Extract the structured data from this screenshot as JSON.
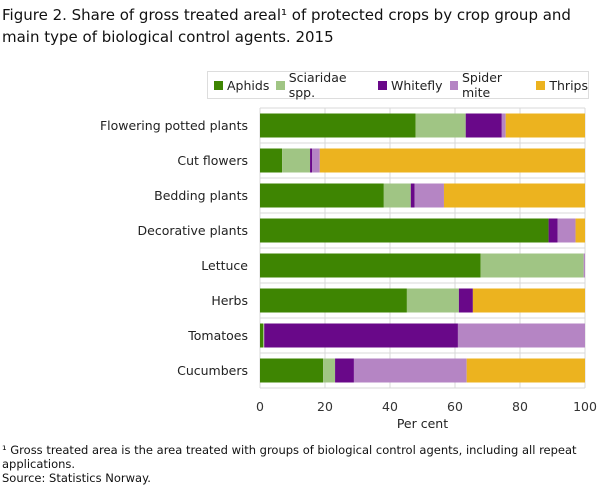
{
  "title": "Figure 2. Share of gross treated areal¹ of protected crops by crop group and main type of biological control agents. 2015",
  "footnote": "¹ Gross treated area is the area treated with groups of biological control agents, including all repeat applications.",
  "source": "Source: Statistics Norway.",
  "chart_data": {
    "type": "bar",
    "orientation": "horizontal",
    "stacked": true,
    "title": "Figure 2. Share of gross treated areal¹ of protected crops by crop group and main type of biological control agents. 2015",
    "xlabel": "Per cent",
    "ylabel": "",
    "xlim": [
      0,
      100
    ],
    "xticks": [
      "0",
      "20",
      "40",
      "60",
      "80",
      "100"
    ],
    "grid": true,
    "legend_position": "top-right",
    "categories": [
      "Flowering potted plants",
      "Cut flowers",
      "Bedding plants",
      "Decorative plants",
      "Lettuce",
      "Herbs",
      "Tomatoes",
      "Cucumbers"
    ],
    "series": [
      {
        "name": "Aphids",
        "color": "#3e8502",
        "values": [
          47.9,
          6.8,
          38.1,
          88.8,
          67.9,
          45.2,
          1.0,
          19.4
        ]
      },
      {
        "name": "Sciaridae spp.",
        "color": "#a0c584",
        "values": [
          15.4,
          8.6,
          8.3,
          0,
          31.7,
          16.0,
          0.3,
          3.7
        ]
      },
      {
        "name": "Whitefly",
        "color": "#690889",
        "values": [
          11.1,
          0.6,
          1.2,
          2.8,
          0,
          4.3,
          59.6,
          5.8
        ]
      },
      {
        "name": "Spider mite",
        "color": "#b585c4",
        "values": [
          1.2,
          2.4,
          9.0,
          5.5,
          0.4,
          0,
          39.1,
          34.7
        ]
      },
      {
        "name": "Thrips",
        "color": "#ecb31f",
        "values": [
          24.4,
          81.6,
          43.4,
          2.9,
          0,
          34.5,
          0,
          36.4
        ]
      }
    ]
  }
}
